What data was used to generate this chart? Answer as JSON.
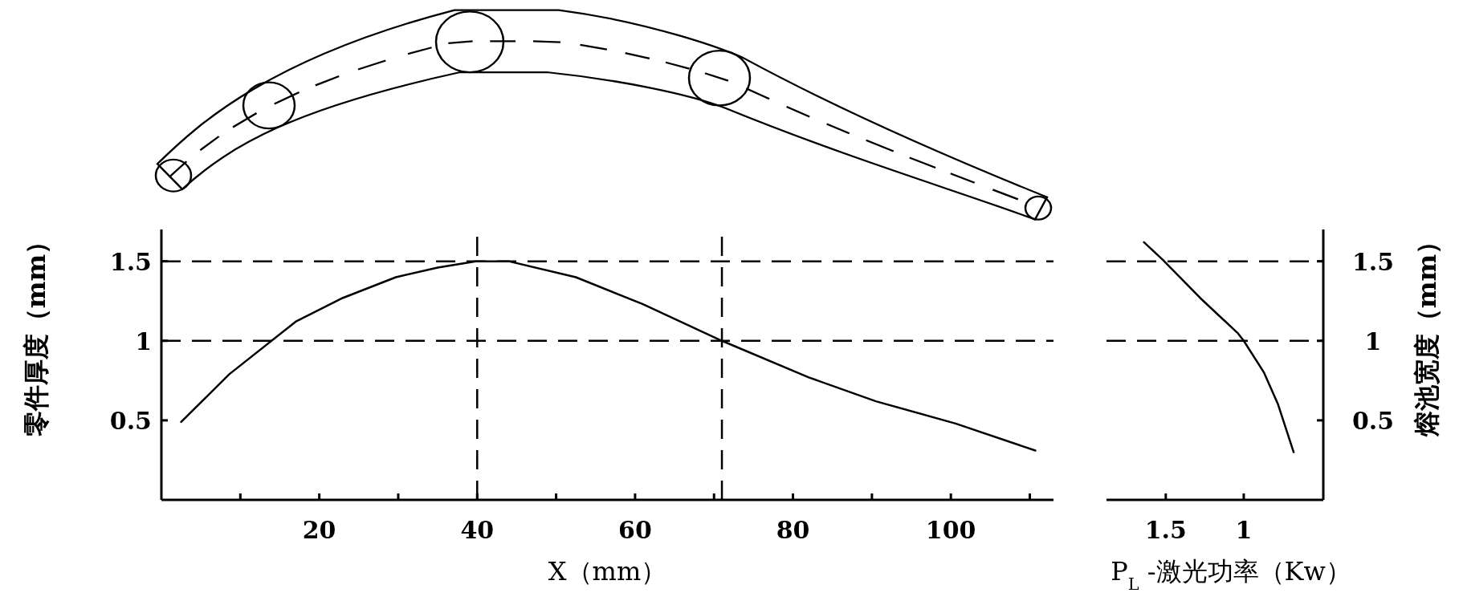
{
  "chart_data": [
    {
      "type": "line",
      "xlabel": "X（mm）",
      "ylabel": "零件厚度（mm）",
      "xlim": [
        0,
        113
      ],
      "ylim": [
        0,
        1.7
      ],
      "xticks": [
        {
          "value": 10,
          "label": null
        },
        20,
        {
          "value": 30,
          "label": null
        },
        40,
        {
          "value": 50,
          "label": null
        },
        60,
        {
          "value": 70,
          "label": null
        },
        80,
        {
          "value": 90,
          "label": null
        },
        100,
        {
          "value": 110,
          "label": null
        }
      ],
      "yticks": [
        0.5,
        1,
        1.5
      ],
      "grid": false,
      "marker": "none",
      "line_style": "solid",
      "series": [
        {
          "color": "#000000",
          "x": [
            2.5,
            8.6,
            17,
            23,
            29.7,
            35,
            39.8,
            44,
            52.5,
            61,
            71,
            82,
            90.5,
            100.6,
            110.7
          ],
          "values": [
            0.49,
            0.79,
            1.12,
            1.27,
            1.4,
            1.46,
            1.5,
            1.5,
            1.4,
            1.23,
            1,
            0.77,
            0.62,
            0.48,
            0.31
          ]
        }
      ],
      "ref_lines": [
        {
          "axis": "x",
          "value": 40,
          "color": "#000000",
          "line_style": "dashed"
        },
        {
          "axis": "x",
          "value": 71,
          "color": "#000000",
          "line_style": "dashed"
        },
        {
          "axis": "y",
          "value": 1.5,
          "color": "#000000",
          "line_style": "dashed"
        },
        {
          "axis": "y",
          "value": 1,
          "color": "#000000",
          "line_style": "dashed"
        }
      ]
    },
    {
      "type": "line",
      "xlabel": "P$_{L}$-激光功率（Kw）",
      "ylabel": "熔池宽度（mm）",
      "xlim": [
        1.88,
        0.49
      ],
      "ylim": [
        0,
        1.7
      ],
      "xticks": [
        1.5,
        1
      ],
      "yticks": [
        0.5,
        1,
        1.5
      ],
      "grid": false,
      "marker": "none",
      "line_style": "solid",
      "series": [
        {
          "color": "#000000",
          "x": [
            1.64,
            1.52,
            1.28,
            1.04,
            1,
            0.87,
            0.78,
            0.73,
            0.68
          ],
          "values": [
            1.62,
            1.51,
            1.27,
            1.05,
            1,
            0.8,
            0.6,
            0.45,
            0.3
          ]
        }
      ],
      "ref_lines": [
        {
          "axis": "y",
          "value": 1.5,
          "color": "#000000",
          "line_style": "dashed"
        },
        {
          "axis": "y",
          "value": 1,
          "color": "#000000",
          "line_style": "dashed"
        }
      ]
    }
  ]
}
